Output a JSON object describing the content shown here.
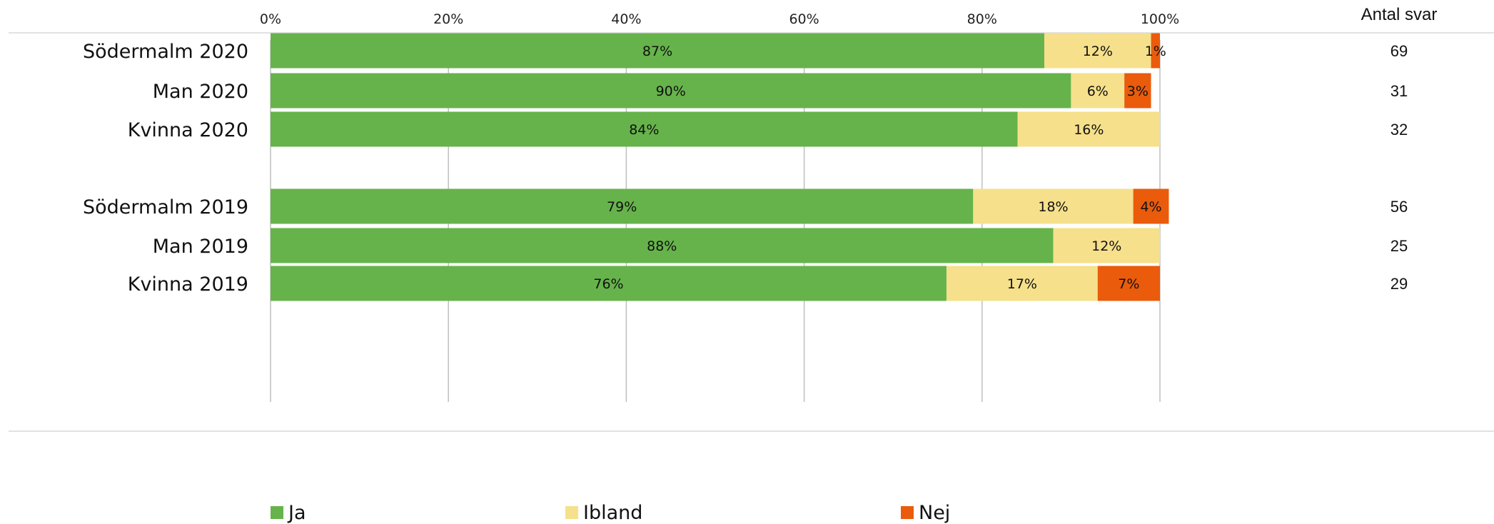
{
  "chart_data": {
    "type": "bar",
    "orientation": "horizontal",
    "stacked": "percent",
    "categories": [
      "Södermalm 2020",
      "Man 2020",
      "Kvinna 2020",
      "Södermalm 2019",
      "Man 2019",
      "Kvinna 2019"
    ],
    "series": [
      {
        "name": "Ja",
        "color": "#66b34b",
        "values": [
          87,
          90,
          84,
          79,
          88,
          76
        ]
      },
      {
        "name": "Ibland",
        "color": "#f6e08b",
        "values": [
          12,
          6,
          16,
          18,
          12,
          17
        ]
      },
      {
        "name": "Nej",
        "color": "#ea5b0c",
        "values": [
          1,
          3,
          0,
          4,
          0,
          7
        ]
      }
    ],
    "x_ticks": [
      "0%",
      "20%",
      "40%",
      "60%",
      "80%",
      "100%"
    ],
    "xlim": [
      0,
      100
    ],
    "grid": true,
    "legend_position": "bottom",
    "count_header": "Antal svar",
    "counts": [
      69,
      31,
      32,
      56,
      25,
      29
    ]
  }
}
